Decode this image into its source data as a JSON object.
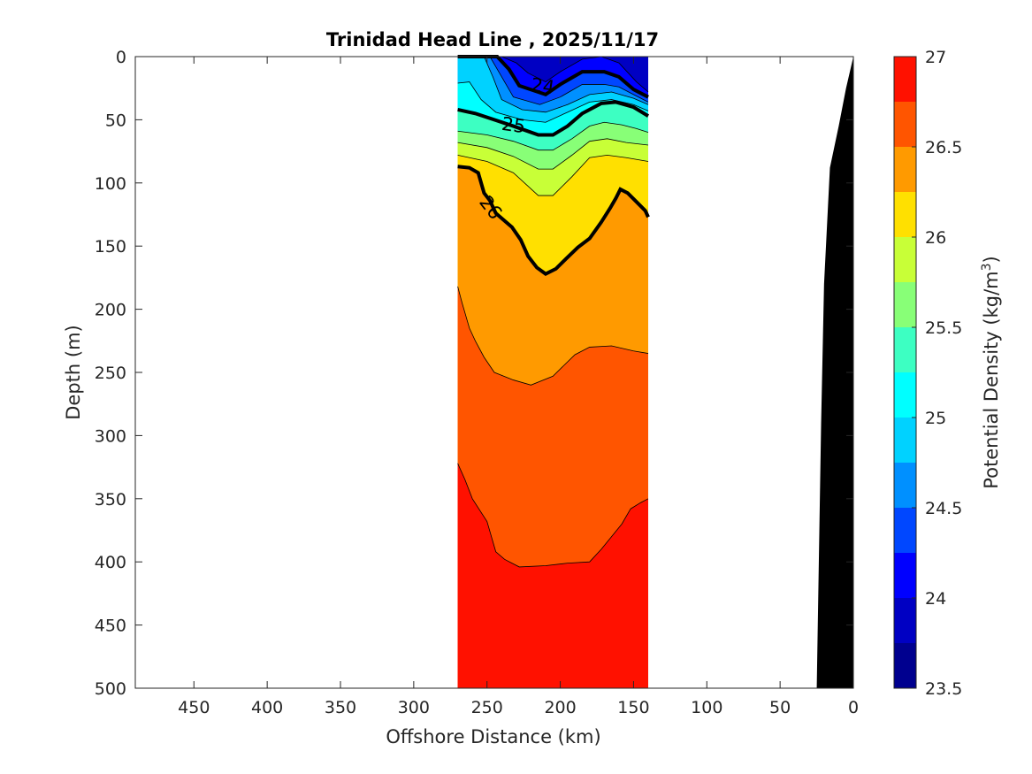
{
  "chart_data": {
    "type": "filled-contour",
    "title": "Trinidad Head Line , 2025/11/17",
    "xlabel": "Offshore Distance (km)",
    "ylabel": "Depth (m)",
    "xlim": [
      490,
      0
    ],
    "ylim": [
      0,
      500
    ],
    "x_reversed": true,
    "y_reversed": true,
    "x_ticks": [
      450,
      400,
      350,
      300,
      250,
      200,
      150,
      100,
      50,
      0
    ],
    "y_ticks": [
      0,
      50,
      100,
      150,
      200,
      250,
      300,
      350,
      400,
      450,
      500
    ],
    "data_extent_km": [
      270,
      140
    ],
    "grid": false,
    "colorbar": {
      "label": "Potential Density (kg/m",
      "label_superscript": "3",
      "label_suffix": ")",
      "range": [
        23.5,
        27
      ],
      "step": 0.25,
      "ticks": [
        23.5,
        24,
        24.5,
        25,
        25.5,
        26,
        26.5,
        27
      ],
      "colors": [
        "#00008f",
        "#0000c3",
        "#0000ff",
        "#0047ff",
        "#0090ff",
        "#00d2ff",
        "#00ffff",
        "#3dffc2",
        "#88ff77",
        "#c8ff37",
        "#ffe000",
        "#ff9a00",
        "#ff5500",
        "#ff1100",
        "#c80000"
      ]
    },
    "layers": [
      {
        "name": "23.75-24.0",
        "level": 23.75,
        "top": [
          [
            270,
            0
          ],
          [
            140,
            0
          ]
        ],
        "bottom": [
          [
            270,
            0
          ],
          [
            240,
            0
          ],
          [
            230,
            5
          ],
          [
            222,
            13
          ],
          [
            210,
            20
          ],
          [
            200,
            12
          ],
          [
            185,
            2
          ],
          [
            172,
            0
          ],
          [
            160,
            5
          ],
          [
            148,
            20
          ],
          [
            140,
            28
          ]
        ]
      },
      {
        "name": "24.0-24.25",
        "level": 24.0,
        "bottom": [
          [
            270,
            0
          ],
          [
            243,
            0
          ],
          [
            235,
            10
          ],
          [
            228,
            23
          ],
          [
            210,
            30
          ],
          [
            200,
            22
          ],
          [
            185,
            12
          ],
          [
            170,
            12
          ],
          [
            160,
            16
          ],
          [
            150,
            26
          ],
          [
            140,
            32
          ]
        ]
      },
      {
        "name": "24.25-24.5",
        "level": 24.25,
        "bottom": [
          [
            270,
            0
          ],
          [
            248,
            0
          ],
          [
            240,
            16
          ],
          [
            232,
            32
          ],
          [
            214,
            38
          ],
          [
            200,
            32
          ],
          [
            185,
            22
          ],
          [
            170,
            22
          ],
          [
            160,
            24
          ],
          [
            150,
            30
          ],
          [
            140,
            36
          ]
        ]
      },
      {
        "name": "24.5-24.75",
        "level": 24.5,
        "bottom": [
          [
            270,
            0
          ],
          [
            252,
            0
          ],
          [
            246,
            16
          ],
          [
            240,
            34
          ],
          [
            226,
            42
          ],
          [
            210,
            44
          ],
          [
            195,
            38
          ],
          [
            180,
            30
          ],
          [
            165,
            28
          ],
          [
            150,
            33
          ],
          [
            140,
            38
          ]
        ]
      },
      {
        "name": "24.75-25.0",
        "level": 24.75,
        "bottom": [
          [
            270,
            21
          ],
          [
            262,
            20
          ],
          [
            254,
            34
          ],
          [
            244,
            44
          ],
          [
            226,
            50
          ],
          [
            210,
            52
          ],
          [
            195,
            44
          ],
          [
            180,
            36
          ],
          [
            165,
            34
          ],
          [
            150,
            38
          ],
          [
            140,
            43
          ]
        ]
      },
      {
        "name": "25.0-25.25",
        "level": 25.0,
        "bottom": [
          [
            270,
            42
          ],
          [
            258,
            45
          ],
          [
            245,
            50
          ],
          [
            232,
            55
          ],
          [
            215,
            62
          ],
          [
            205,
            62
          ],
          [
            195,
            55
          ],
          [
            185,
            45
          ],
          [
            172,
            37
          ],
          [
            162,
            36
          ],
          [
            150,
            40
          ],
          [
            140,
            47
          ]
        ]
      },
      {
        "name": "25.25-25.5",
        "level": 25.25,
        "bottom": [
          [
            270,
            59
          ],
          [
            250,
            62
          ],
          [
            232,
            67
          ],
          [
            215,
            74
          ],
          [
            205,
            74
          ],
          [
            192,
            65
          ],
          [
            180,
            55
          ],
          [
            170,
            52
          ],
          [
            158,
            54
          ],
          [
            148,
            57
          ],
          [
            140,
            60
          ]
        ]
      },
      {
        "name": "25.5-25.75",
        "level": 25.5,
        "bottom": [
          [
            270,
            68
          ],
          [
            250,
            72
          ],
          [
            232,
            79
          ],
          [
            215,
            89
          ],
          [
            205,
            89
          ],
          [
            192,
            78
          ],
          [
            180,
            67
          ],
          [
            168,
            65
          ],
          [
            155,
            68
          ],
          [
            140,
            70
          ]
        ]
      },
      {
        "name": "25.75-26.0",
        "level": 25.75,
        "bottom": [
          [
            270,
            78
          ],
          [
            250,
            83
          ],
          [
            232,
            92
          ],
          [
            215,
            110
          ],
          [
            205,
            110
          ],
          [
            192,
            95
          ],
          [
            180,
            80
          ],
          [
            168,
            78
          ],
          [
            155,
            80
          ],
          [
            140,
            83
          ]
        ]
      },
      {
        "name": "26.0-26.25",
        "level": 26.0,
        "bottom": [
          [
            270,
            87
          ],
          [
            262,
            88
          ],
          [
            256,
            92
          ],
          [
            254,
            100
          ],
          [
            252,
            108
          ],
          [
            248,
            114
          ],
          [
            244,
            124
          ],
          [
            240,
            128
          ],
          [
            233,
            135
          ],
          [
            227,
            145
          ],
          [
            222,
            158
          ],
          [
            216,
            167
          ],
          [
            210,
            172
          ],
          [
            203,
            168
          ],
          [
            196,
            160
          ],
          [
            188,
            151
          ],
          [
            180,
            144
          ],
          [
            172,
            131
          ],
          [
            166,
            120
          ],
          [
            162,
            112
          ],
          [
            159,
            105
          ],
          [
            154,
            108
          ],
          [
            148,
            115
          ],
          [
            142,
            122
          ],
          [
            140,
            127
          ]
        ]
      },
      {
        "name": "26.25-26.5",
        "level": 26.25,
        "bottom": [
          [
            270,
            182
          ],
          [
            267,
            195
          ],
          [
            262,
            215
          ],
          [
            258,
            225
          ],
          [
            252,
            238
          ],
          [
            245,
            250
          ],
          [
            232,
            256
          ],
          [
            220,
            260
          ],
          [
            205,
            253
          ],
          [
            198,
            245
          ],
          [
            190,
            236
          ],
          [
            180,
            230
          ],
          [
            165,
            229
          ],
          [
            150,
            233
          ],
          [
            140,
            235
          ]
        ]
      },
      {
        "name": "26.5-26.75",
        "level": 26.5,
        "bottom": [
          [
            270,
            322
          ],
          [
            265,
            335
          ],
          [
            260,
            350
          ],
          [
            250,
            368
          ],
          [
            244,
            392
          ],
          [
            238,
            398
          ],
          [
            228,
            404
          ],
          [
            210,
            403
          ],
          [
            195,
            401
          ],
          [
            180,
            400
          ],
          [
            172,
            390
          ],
          [
            165,
            380
          ],
          [
            158,
            370
          ],
          [
            152,
            358
          ],
          [
            145,
            353
          ],
          [
            140,
            350
          ]
        ]
      },
      {
        "name": "26.75-27.0",
        "level": 26.75,
        "bottom": [
          [
            270,
            500
          ],
          [
            140,
            500
          ]
        ]
      }
    ],
    "labelled_contours": [
      {
        "label": "24",
        "level": 24.0
      },
      {
        "label": "25",
        "level": 25.0
      },
      {
        "label": "26",
        "level": 26.0
      }
    ],
    "bathymetry": {
      "color": "#000000",
      "points": [
        [
          0,
          0
        ],
        [
          5,
          25
        ],
        [
          10,
          55
        ],
        [
          16,
          88
        ],
        [
          20,
          180
        ],
        [
          22,
          290
        ],
        [
          25,
          500
        ],
        [
          0,
          500
        ]
      ]
    }
  }
}
